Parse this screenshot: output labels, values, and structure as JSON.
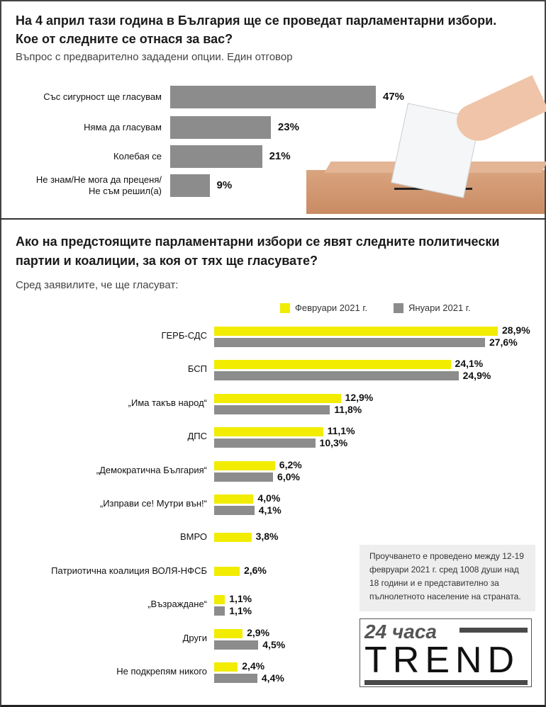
{
  "q1": {
    "title_line1": "На 4 април тази година в България ще се проведат парламентарни избори.",
    "title_line2": "Кое от следните се отнася за вас?",
    "subtitle": "Въпрос с предварително зададени опции. Един отговор"
  },
  "q2": {
    "title_line1": "Ако на предстоящите парламентарни избори се явят следните политически",
    "title_line2": "партии и коалиции, за коя от тях ще гласувате?",
    "subtitle": "Сред заявилите, че ще гласуват:"
  },
  "note": "Проучването е проведено между 12-19 февруари 2021 г. сред 1008 души над 18 години и е представително за пълнолетното население на страната.",
  "logo": {
    "top": "24 часа",
    "bottom": "TREND"
  },
  "colors": {
    "feb": "#f2ec00",
    "jan": "#8c8c8c",
    "bar1": "#8c8c8c"
  },
  "chart_data": [
    {
      "type": "bar",
      "orientation": "horizontal",
      "categories": [
        "Със сигурност ще гласувам",
        "Няма да гласувам",
        "Колебая се",
        "Не знам/Не мога да преценя/\nНе съм решил(а)"
      ],
      "values": [
        47,
        23,
        21,
        9
      ],
      "value_labels": [
        "47%",
        "23%",
        "21%",
        "9%"
      ]
    },
    {
      "type": "bar",
      "orientation": "horizontal",
      "legend": [
        "Февруари 2021 г.",
        "Януари 2021 г."
      ],
      "legend_position": "top-right",
      "categories": [
        "ГЕРБ-СДС",
        "БСП",
        "„Има такъв народ“",
        "ДПС",
        "„Демократична България“",
        "„Изправи се! Мутри вън!“",
        "ВМРО",
        "Патриотична коалиция ВОЛЯ-НФСБ",
        "„Възраждане“",
        "Други",
        "Не подкрепям никого"
      ],
      "series": [
        {
          "name": "Февруари 2021 г.",
          "values": [
            28.9,
            24.1,
            12.9,
            11.1,
            6.2,
            4.0,
            3.8,
            2.6,
            1.1,
            2.9,
            2.4
          ],
          "labels": [
            "28,9%",
            "24,1%",
            "12,9%",
            "11,1%",
            "6,2%",
            "4,0%",
            "3,8%",
            "2,6%",
            "1,1%",
            "2,9%",
            "2,4%"
          ]
        },
        {
          "name": "Януари 2021 г.",
          "values": [
            27.6,
            24.9,
            11.8,
            10.3,
            6.0,
            4.1,
            null,
            null,
            1.1,
            4.5,
            4.4
          ],
          "labels": [
            "27,6%",
            "24,9%",
            "11,8%",
            "10,3%",
            "6,0%",
            "4,1%",
            null,
            null,
            "1,1%",
            "4,5%",
            "4,4%"
          ]
        }
      ]
    }
  ]
}
